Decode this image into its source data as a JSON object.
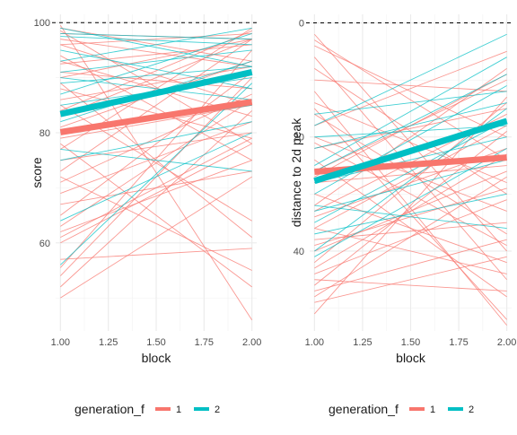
{
  "chart_data": [
    {
      "type": "line",
      "xlabel": "block",
      "ylabel": "score",
      "x_ticks": [
        "1.00",
        "1.25",
        "1.50",
        "1.75",
        "2.00"
      ],
      "y_ticks": [
        "60",
        "80",
        "100"
      ],
      "xlim": [
        0.975,
        2.025
      ],
      "ylim": [
        44,
        101.5
      ],
      "reference_line": {
        "y": 100,
        "style": "dashed"
      },
      "grid": true,
      "legend": {
        "title": "generation_f",
        "placement": "bottom",
        "entries": [
          "1",
          "2"
        ]
      },
      "colors": {
        "1": "#F8766D",
        "2": "#00BFC4"
      },
      "x": [
        1.0,
        2.0
      ],
      "trend": [
        {
          "group": "1",
          "values": [
            80.1,
            85.6
          ]
        },
        {
          "group": "2",
          "values": [
            83.4,
            91.0
          ]
        }
      ],
      "individual": [
        {
          "group": "1",
          "values": [
            99.0,
            93.0
          ]
        },
        {
          "group": "1",
          "values": [
            98.5,
            78.0
          ]
        },
        {
          "group": "1",
          "values": [
            98.0,
            97.0
          ]
        },
        {
          "group": "1",
          "values": [
            97.0,
            92.0
          ]
        },
        {
          "group": "1",
          "values": [
            96.0,
            85.0
          ]
        },
        {
          "group": "1",
          "values": [
            96.0,
            98.0
          ]
        },
        {
          "group": "1",
          "values": [
            94.0,
            75.0
          ]
        },
        {
          "group": "1",
          "values": [
            92.5,
            96.0
          ]
        },
        {
          "group": "1",
          "values": [
            91.0,
            88.0
          ]
        },
        {
          "group": "1",
          "values": [
            90.0,
            97.0
          ]
        },
        {
          "group": "1",
          "values": [
            88.0,
            79.0
          ]
        },
        {
          "group": "1",
          "values": [
            86.0,
            92.0
          ]
        },
        {
          "group": "1",
          "values": [
            85.0,
            64.0
          ]
        },
        {
          "group": "1",
          "values": [
            83.0,
            97.0
          ]
        },
        {
          "group": "1",
          "values": [
            81.0,
            93.0
          ]
        },
        {
          "group": "1",
          "values": [
            79.0,
            85.0
          ]
        },
        {
          "group": "1",
          "values": [
            77.0,
            99.0
          ]
        },
        {
          "group": "1",
          "values": [
            75.0,
            80.0
          ]
        },
        {
          "group": "1",
          "values": [
            73.0,
            97.0
          ]
        },
        {
          "group": "1",
          "values": [
            71.0,
            87.0
          ]
        },
        {
          "group": "1",
          "values": [
            69.0,
            82.0
          ]
        },
        {
          "group": "1",
          "values": [
            67.0,
            73.0
          ]
        },
        {
          "group": "1",
          "values": [
            65.0,
            91.0
          ]
        },
        {
          "group": "1",
          "values": [
            63.0,
            86.0
          ]
        },
        {
          "group": "1",
          "values": [
            61.0,
            79.0
          ]
        },
        {
          "group": "1",
          "values": [
            60.0,
            78.0
          ]
        },
        {
          "group": "1",
          "values": [
            57.0,
            59.0
          ]
        },
        {
          "group": "1",
          "values": [
            55.5,
            95.0
          ]
        },
        {
          "group": "1",
          "values": [
            54.0,
            90.0
          ]
        },
        {
          "group": "1",
          "values": [
            52.0,
            84.0
          ]
        },
        {
          "group": "1",
          "values": [
            50.0,
            72.0
          ]
        },
        {
          "group": "1",
          "values": [
            99.5,
            46.0
          ]
        },
        {
          "group": "1",
          "values": [
            89.0,
            61.0
          ]
        },
        {
          "group": "1",
          "values": [
            78.0,
            52.0
          ]
        },
        {
          "group": "1",
          "values": [
            72.0,
            55.0
          ]
        },
        {
          "group": "1",
          "values": [
            93.0,
            83.0
          ]
        },
        {
          "group": "1",
          "values": [
            84.0,
            98.5
          ]
        },
        {
          "group": "1",
          "values": [
            62.0,
            75.0
          ]
        },
        {
          "group": "2",
          "values": [
            99.0,
            92.0
          ]
        },
        {
          "group": "2",
          "values": [
            97.5,
            96.0
          ]
        },
        {
          "group": "2",
          "values": [
            95.0,
            88.0
          ]
        },
        {
          "group": "2",
          "values": [
            93.0,
            99.0
          ]
        },
        {
          "group": "2",
          "values": [
            91.0,
            95.0
          ]
        },
        {
          "group": "2",
          "values": [
            89.0,
            92.0
          ]
        },
        {
          "group": "2",
          "values": [
            87.0,
            98.0
          ]
        },
        {
          "group": "2",
          "values": [
            85.0,
            90.0
          ]
        },
        {
          "group": "2",
          "values": [
            82.0,
            93.0
          ]
        },
        {
          "group": "2",
          "values": [
            80.0,
            85.0
          ]
        },
        {
          "group": "2",
          "values": [
            77.0,
            73.0
          ]
        },
        {
          "group": "2",
          "values": [
            75.0,
            82.0
          ]
        },
        {
          "group": "2",
          "values": [
            64.0,
            80.0
          ]
        },
        {
          "group": "2",
          "values": [
            56.0,
            89.0
          ]
        },
        {
          "group": "2",
          "values": [
            98.0,
            97.0
          ]
        },
        {
          "group": "2",
          "values": [
            90.0,
            86.0
          ]
        }
      ]
    },
    {
      "type": "line",
      "xlabel": "block",
      "ylabel": "distance to 2d peak",
      "x_ticks": [
        "1.00",
        "1.25",
        "1.50",
        "1.75",
        "2.00"
      ],
      "y_ticks": [
        "0",
        "20",
        "40"
      ],
      "xlim": [
        0.975,
        2.025
      ],
      "ylim": [
        54,
        -1.5
      ],
      "reference_line": {
        "y": 0,
        "style": "dashed"
      },
      "grid": true,
      "legend": {
        "title": "generation_f",
        "placement": "bottom",
        "entries": [
          "1",
          "2"
        ]
      },
      "colors": {
        "1": "#F8766D",
        "2": "#00BFC4"
      },
      "x": [
        1.0,
        2.0
      ],
      "trend": [
        {
          "group": "1",
          "values": [
            26.1,
            23.6
          ]
        },
        {
          "group": "2",
          "values": [
            27.7,
            17.2
          ]
        }
      ],
      "individual": [
        {
          "group": "1",
          "values": [
            2.0,
            40.0
          ]
        },
        {
          "group": "1",
          "values": [
            4.0,
            20.0
          ]
        },
        {
          "group": "1",
          "values": [
            6.0,
            45.0
          ]
        },
        {
          "group": "1",
          "values": [
            8.0,
            30.0
          ]
        },
        {
          "group": "1",
          "values": [
            10.0,
            12.0
          ]
        },
        {
          "group": "1",
          "values": [
            12.0,
            53.0
          ]
        },
        {
          "group": "1",
          "values": [
            14.0,
            28.0
          ]
        },
        {
          "group": "1",
          "values": [
            16.0,
            37.0
          ]
        },
        {
          "group": "1",
          "values": [
            18.0,
            5.0
          ]
        },
        {
          "group": "1",
          "values": [
            20.0,
            33.0
          ]
        },
        {
          "group": "1",
          "values": [
            22.0,
            15.0
          ]
        },
        {
          "group": "1",
          "values": [
            24.0,
            48.0
          ]
        },
        {
          "group": "1",
          "values": [
            26.0,
            10.0
          ]
        },
        {
          "group": "1",
          "values": [
            28.0,
            25.0
          ]
        },
        {
          "group": "1",
          "values": [
            30.0,
            42.0
          ]
        },
        {
          "group": "1",
          "values": [
            32.0,
            8.0
          ]
        },
        {
          "group": "1",
          "values": [
            34.0,
            22.0
          ]
        },
        {
          "group": "1",
          "values": [
            36.0,
            18.0
          ]
        },
        {
          "group": "1",
          "values": [
            38.0,
            35.0
          ]
        },
        {
          "group": "1",
          "values": [
            40.0,
            26.0
          ]
        },
        {
          "group": "1",
          "values": [
            42.0,
            14.0
          ]
        },
        {
          "group": "1",
          "values": [
            44.0,
            31.0
          ]
        },
        {
          "group": "1",
          "values": [
            45.0,
            47.0
          ]
        },
        {
          "group": "1",
          "values": [
            46.0,
            19.0
          ]
        },
        {
          "group": "1",
          "values": [
            47.0,
            38.0
          ]
        },
        {
          "group": "1",
          "values": [
            48.0,
            27.0
          ]
        },
        {
          "group": "1",
          "values": [
            49.0,
            41.0
          ]
        },
        {
          "group": "1",
          "values": [
            51.0,
            13.0
          ]
        },
        {
          "group": "1",
          "values": [
            3.0,
            24.0
          ]
        },
        {
          "group": "1",
          "values": [
            15.0,
            52.0
          ]
        },
        {
          "group": "1",
          "values": [
            21.0,
            39.0
          ]
        },
        {
          "group": "1",
          "values": [
            27.0,
            9.0
          ]
        },
        {
          "group": "1",
          "values": [
            33.0,
            16.0
          ]
        },
        {
          "group": "1",
          "values": [
            39.0,
            29.0
          ]
        },
        {
          "group": "1",
          "values": [
            43.0,
            23.0
          ]
        },
        {
          "group": "1",
          "values": [
            36.0,
            44.0
          ]
        },
        {
          "group": "2",
          "values": [
            18.0,
            2.0
          ]
        },
        {
          "group": "2",
          "values": [
            22.0,
            14.0
          ]
        },
        {
          "group": "2",
          "values": [
            25.0,
            6.0
          ]
        },
        {
          "group": "2",
          "values": [
            28.0,
            20.0
          ]
        },
        {
          "group": "2",
          "values": [
            30.0,
            11.0
          ]
        },
        {
          "group": "2",
          "values": [
            33.0,
            24.0
          ]
        },
        {
          "group": "2",
          "values": [
            35.0,
            17.0
          ]
        },
        {
          "group": "2",
          "values": [
            37.0,
            30.0
          ]
        },
        {
          "group": "2",
          "values": [
            40.0,
            15.0
          ]
        },
        {
          "group": "2",
          "values": [
            32.0,
            36.0
          ]
        },
        {
          "group": "2",
          "values": [
            26.0,
            9.0
          ]
        },
        {
          "group": "2",
          "values": [
            20.0,
            18.0
          ]
        },
        {
          "group": "2",
          "values": [
            41.0,
            22.0
          ]
        },
        {
          "group": "2",
          "values": [
            16.0,
            12.0
          ]
        }
      ]
    }
  ]
}
